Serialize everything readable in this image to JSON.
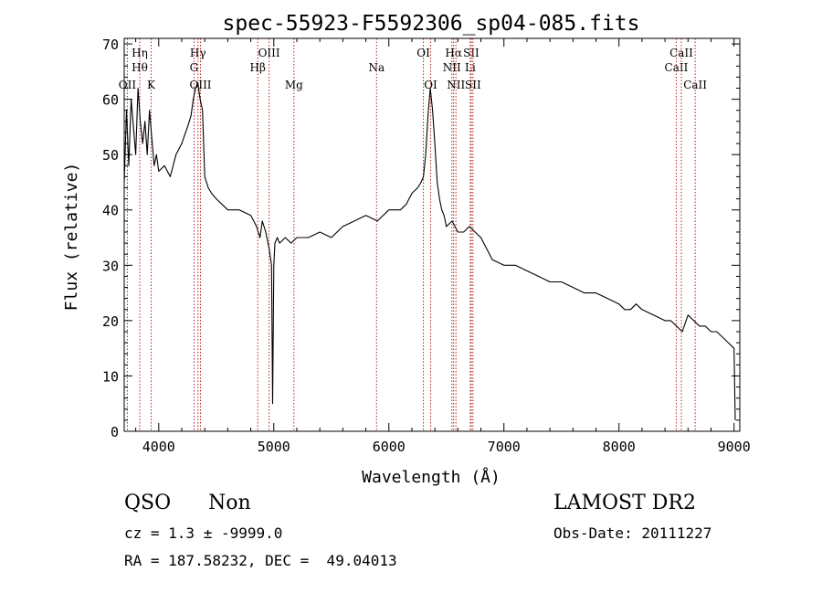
{
  "chart_data": {
    "type": "line",
    "title": "spec-55923-F5592306_sp04-085.fits",
    "xlabel": "Wavelength (Å)",
    "ylabel": "Flux (relative)",
    "xlim": [
      3700,
      9050
    ],
    "ylim": [
      0,
      71
    ],
    "xticks": [
      4000,
      5000,
      6000,
      7000,
      8000,
      9000
    ],
    "yticks": [
      0,
      10,
      20,
      30,
      40,
      50,
      60,
      70
    ],
    "grid": false,
    "series": [
      {
        "color": "#000000",
        "x": [
          3700,
          3720,
          3740,
          3760,
          3780,
          3800,
          3820,
          3840,
          3860,
          3880,
          3900,
          3920,
          3940,
          3960,
          3980,
          4000,
          4050,
          4100,
          4150,
          4200,
          4250,
          4280,
          4300,
          4320,
          4340,
          4360,
          4380,
          4400,
          4430,
          4460,
          4500,
          4550,
          4600,
          4700,
          4800,
          4850,
          4880,
          4900,
          4930,
          4960,
          4980,
          4990,
          5000,
          5010,
          5030,
          5050,
          5100,
          5150,
          5200,
          5300,
          5400,
          5500,
          5600,
          5700,
          5800,
          5900,
          6000,
          6100,
          6150,
          6200,
          6250,
          6280,
          6300,
          6320,
          6340,
          6360,
          6380,
          6400,
          6420,
          6440,
          6460,
          6480,
          6500,
          6550,
          6600,
          6650,
          6700,
          6750,
          6800,
          6850,
          6900,
          7000,
          7100,
          7200,
          7300,
          7400,
          7500,
          7600,
          7700,
          7800,
          7900,
          8000,
          8050,
          8100,
          8150,
          8200,
          8300,
          8400,
          8450,
          8500,
          8550,
          8600,
          8650,
          8700,
          8750,
          8800,
          8850,
          8900,
          8950,
          9000,
          9010
        ],
        "y": [
          45,
          58,
          48,
          60,
          55,
          50,
          62,
          56,
          52,
          56,
          50,
          58,
          53,
          48,
          50,
          47,
          48,
          46,
          50,
          52,
          55,
          57,
          60,
          62,
          63,
          60,
          58,
          46,
          44,
          43,
          42,
          41,
          40,
          40,
          39,
          37,
          35,
          38,
          36,
          33,
          30,
          5,
          30,
          34,
          35,
          34,
          35,
          34,
          35,
          35,
          36,
          35,
          37,
          38,
          39,
          38,
          40,
          40,
          41,
          43,
          44,
          45,
          46,
          50,
          57,
          62,
          58,
          52,
          45,
          42,
          40,
          39,
          37,
          38,
          36,
          36,
          37,
          36,
          35,
          33,
          31,
          30,
          30,
          29,
          28,
          27,
          27,
          26,
          25,
          25,
          24,
          23,
          22,
          22,
          23,
          22,
          21,
          20,
          20,
          19,
          18,
          21,
          20,
          19,
          19,
          18,
          18,
          17,
          16,
          15,
          2
        ]
      }
    ],
    "lines": [
      {
        "x": 3727,
        "row1": "",
        "row2": "",
        "row3": "OII"
      },
      {
        "x": 3835,
        "row1": "Hη",
        "row2": "Hθ",
        "row3": ""
      },
      {
        "x": 3934,
        "row1": "",
        "row2": "",
        "row3": "K"
      },
      {
        "x": 4307,
        "row1": "",
        "row2": "G",
        "row3": ""
      },
      {
        "x": 4341,
        "row1": "Hγ",
        "row2": "",
        "row3": ""
      },
      {
        "x": 4363,
        "row1": "",
        "row2": "",
        "row3": "OIII"
      },
      {
        "x": 4861,
        "row1": "",
        "row2": "Hβ",
        "row3": ""
      },
      {
        "x": 4959,
        "row1": "OIII",
        "row2": "",
        "row3": ""
      },
      {
        "x": 5175,
        "row1": "",
        "row2": "",
        "row3": "Mg"
      },
      {
        "x": 5893,
        "row1": "",
        "row2": "Na",
        "row3": ""
      },
      {
        "x": 6300,
        "row1": "OI",
        "row2": "",
        "row3": ""
      },
      {
        "x": 6363,
        "row1": "",
        "row2": "",
        "row3": "OI"
      },
      {
        "x": 6548,
        "row1": "",
        "row2": "NII",
        "row3": ""
      },
      {
        "x": 6563,
        "row1": "Hα",
        "row2": "",
        "row3": ""
      },
      {
        "x": 6583,
        "row1": "",
        "row2": "",
        "row3": "NII"
      },
      {
        "x": 6708,
        "row1": "",
        "row2": "Li",
        "row3": ""
      },
      {
        "x": 6716,
        "row1": "SII",
        "row2": "",
        "row3": ""
      },
      {
        "x": 6731,
        "row1": "",
        "row2": "",
        "row3": "SII"
      },
      {
        "x": 8498,
        "row1": "",
        "row2": "CaII",
        "row3": ""
      },
      {
        "x": 8542,
        "row1": "CaII",
        "row2": "",
        "row3": ""
      },
      {
        "x": 8662,
        "row1": "",
        "row2": "",
        "row3": "CaII"
      }
    ]
  },
  "info": {
    "class": "QSO",
    "subclass": "Non",
    "survey": "LAMOST DR2",
    "cz": "cz = 1.3 ± -9999.0",
    "obsdate": "Obs-Date: 20111227",
    "radec": "RA = 187.58232, DEC =  49.04013"
  }
}
